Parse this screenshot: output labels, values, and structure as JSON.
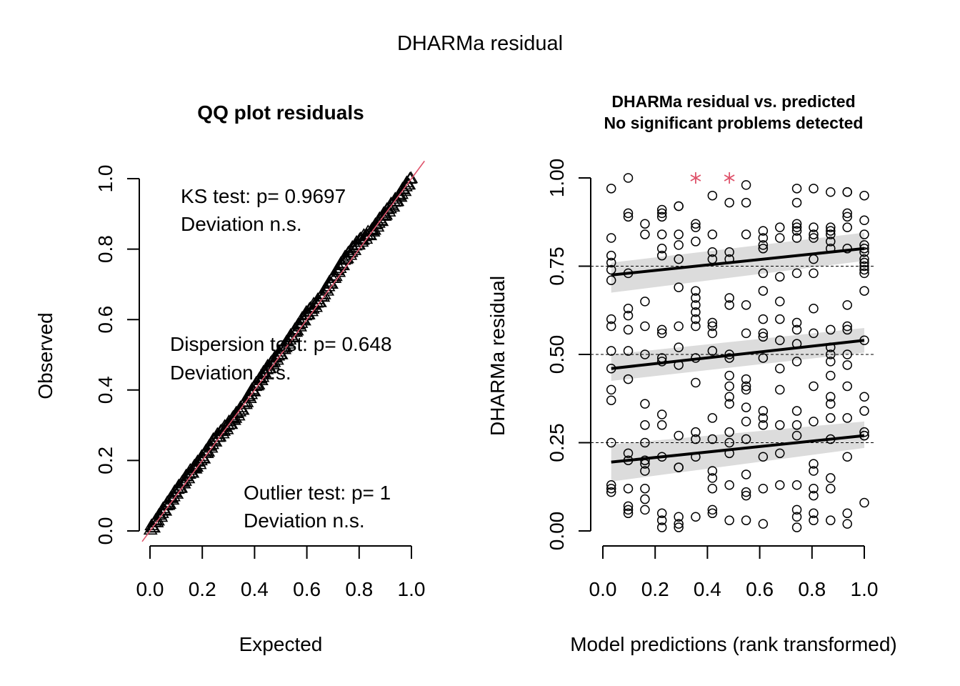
{
  "figure": {
    "title": "DHARMa residual"
  },
  "chart_data": [
    {
      "type": "scatter",
      "title": "QQ plot residuals",
      "xlabel": "Expected",
      "ylabel": "Observed",
      "xlim": [
        0,
        1
      ],
      "ylim": [
        0,
        1
      ],
      "xticks": [
        "0.0",
        "0.2",
        "0.4",
        "0.6",
        "0.8",
        "1.0"
      ],
      "yticks": [
        "0.0",
        "0.2",
        "0.4",
        "0.6",
        "0.8",
        "1.0"
      ],
      "marker": "triangle",
      "reference_line": {
        "from": [
          0,
          0
        ],
        "to": [
          1,
          1
        ],
        "color": "#DF536B"
      },
      "qq_deviation_profile": {
        "expected": [
          0.0,
          0.05,
          0.1,
          0.15,
          0.2,
          0.25,
          0.3,
          0.35,
          0.4,
          0.45,
          0.5,
          0.55,
          0.6,
          0.65,
          0.7,
          0.75,
          0.8,
          0.85,
          0.9,
          0.95,
          1.0
        ],
        "observed": [
          0.0,
          0.055,
          0.11,
          0.16,
          0.205,
          0.26,
          0.3,
          0.345,
          0.405,
          0.46,
          0.505,
          0.56,
          0.615,
          0.655,
          0.715,
          0.775,
          0.82,
          0.85,
          0.9,
          0.945,
          1.0
        ]
      },
      "n_points": 250,
      "annotations": [
        {
          "line1": "KS test: p= 0.9697",
          "line2": "Deviation  n.s."
        },
        {
          "line1": "Dispersion test: p= 0.648",
          "line2": "Deviation  n.s."
        },
        {
          "line1": "Outlier test: p= 1",
          "line2": "Deviation  n.s."
        }
      ]
    },
    {
      "type": "scatter",
      "title_line1": "DHARMa residual vs. predicted",
      "title_line2": "No significant problems detected",
      "xlabel": "Model predictions (rank transformed)",
      "ylabel": "DHARMa residual",
      "xlim": [
        0,
        1
      ],
      "ylim": [
        0,
        1
      ],
      "xticks": [
        "0.0",
        "0.2",
        "0.4",
        "0.6",
        "0.8",
        "1.0"
      ],
      "yticks": [
        "0.00",
        "0.25",
        "0.50",
        "0.75",
        "1.00"
      ],
      "hlines": [
        0.25,
        0.5,
        0.75
      ],
      "outliers": [
        {
          "x": 0.355,
          "y": 1.0
        },
        {
          "x": 0.484,
          "y": 1.0
        }
      ],
      "outlier_color": "#DF536B",
      "quantile_fits": [
        {
          "quantile": 0.25,
          "y_at_min": 0.195,
          "y_at_max": 0.27,
          "band_low_min": 0.14,
          "band_high_min": 0.245,
          "band_low_max": 0.235,
          "band_high_max": 0.31
        },
        {
          "quantile": 0.5,
          "y_at_min": 0.46,
          "y_at_max": 0.54,
          "band_low_min": 0.425,
          "band_high_min": 0.5,
          "band_low_max": 0.505,
          "band_high_max": 0.575
        },
        {
          "quantile": 0.75,
          "y_at_min": 0.725,
          "y_at_max": 0.8,
          "band_low_min": 0.675,
          "band_high_min": 0.76,
          "band_low_max": 0.765,
          "band_high_max": 0.845
        }
      ],
      "columns_x": [
        0.032,
        0.097,
        0.161,
        0.226,
        0.29,
        0.355,
        0.419,
        0.484,
        0.548,
        0.613,
        0.677,
        0.742,
        0.806,
        0.871,
        0.935,
        1.0
      ],
      "points_by_column": [
        [
          0.97,
          0.83,
          0.78,
          0.76,
          0.74,
          0.71,
          0.6,
          0.58,
          0.51,
          0.46,
          0.4,
          0.37,
          0.25,
          0.13,
          0.12,
          0.11
        ],
        [
          1.0,
          0.9,
          0.89,
          0.73,
          0.63,
          0.61,
          0.57,
          0.51,
          0.43,
          0.22,
          0.2,
          0.12,
          0.07,
          0.06,
          0.05
        ],
        [
          0.87,
          0.84,
          0.65,
          0.58,
          0.5,
          0.36,
          0.3,
          0.25,
          0.2,
          0.19,
          0.17,
          0.12,
          0.09,
          0.06
        ],
        [
          0.91,
          0.9,
          0.89,
          0.84,
          0.8,
          0.78,
          0.57,
          0.56,
          0.49,
          0.48,
          0.33,
          0.3,
          0.21,
          0.05,
          0.03,
          0.01
        ],
        [
          0.92,
          0.92,
          0.84,
          0.81,
          0.77,
          0.69,
          0.58,
          0.52,
          0.47,
          0.27,
          0.18,
          0.18,
          0.04,
          0.02,
          0.01
        ],
        [
          0.87,
          0.86,
          0.82,
          0.68,
          0.66,
          0.64,
          0.62,
          0.6,
          0.58,
          0.49,
          0.42,
          0.28,
          0.26,
          0.21,
          0.04
        ],
        [
          0.95,
          0.84,
          0.79,
          0.77,
          0.59,
          0.58,
          0.56,
          0.51,
          0.32,
          0.26,
          0.17,
          0.15,
          0.12,
          0.06,
          0.05
        ],
        [
          0.93,
          0.79,
          0.77,
          0.66,
          0.64,
          0.5,
          0.49,
          0.44,
          0.41,
          0.38,
          0.36,
          0.28,
          0.25,
          0.22,
          0.13,
          0.03
        ],
        [
          0.98,
          0.93,
          0.84,
          0.64,
          0.56,
          0.43,
          0.41,
          0.4,
          0.35,
          0.31,
          0.26,
          0.16,
          0.11,
          0.1,
          0.03
        ],
        [
          0.85,
          0.83,
          0.81,
          0.8,
          0.73,
          0.68,
          0.6,
          0.56,
          0.55,
          0.49,
          0.34,
          0.32,
          0.3,
          0.21,
          0.12,
          0.02
        ],
        [
          0.86,
          0.83,
          0.72,
          0.65,
          0.6,
          0.54,
          0.46,
          0.4,
          0.3,
          0.22,
          0.13
        ],
        [
          0.97,
          0.93,
          0.87,
          0.86,
          0.85,
          0.83,
          0.73,
          0.59,
          0.57,
          0.53,
          0.48,
          0.34,
          0.3,
          0.27,
          0.13,
          0.06,
          0.04,
          0.01
        ],
        [
          0.97,
          0.86,
          0.84,
          0.83,
          0.77,
          0.73,
          0.63,
          0.56,
          0.41,
          0.31,
          0.19,
          0.17,
          0.12,
          0.1,
          0.05,
          0.03
        ],
        [
          0.96,
          0.86,
          0.85,
          0.84,
          0.82,
          0.8,
          0.57,
          0.52,
          0.5,
          0.48,
          0.44,
          0.38,
          0.36,
          0.32,
          0.26,
          0.15,
          0.12,
          0.03
        ],
        [
          0.96,
          0.96,
          0.9,
          0.89,
          0.86,
          0.8,
          0.64,
          0.58,
          0.57,
          0.5,
          0.47,
          0.41,
          0.32,
          0.21,
          0.05,
          0.02
        ],
        [
          0.95,
          0.88,
          0.84,
          0.81,
          0.8,
          0.79,
          0.77,
          0.76,
          0.75,
          0.74,
          0.73,
          0.68,
          0.54,
          0.38,
          0.34,
          0.28,
          0.27,
          0.27,
          0.08
        ]
      ]
    }
  ]
}
